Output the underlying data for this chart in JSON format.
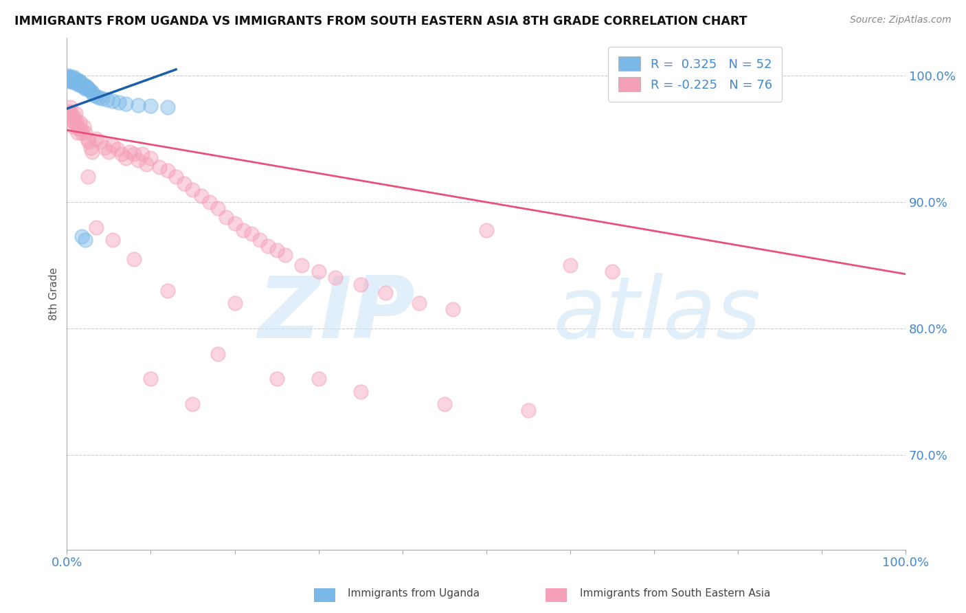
{
  "title": "IMMIGRANTS FROM UGANDA VS IMMIGRANTS FROM SOUTH EASTERN ASIA 8TH GRADE CORRELATION CHART",
  "source": "Source: ZipAtlas.com",
  "ylabel": "8th Grade",
  "legend_blue_label": "R =  0.325   N = 52",
  "legend_pink_label": "R = -0.225   N = 76",
  "blue_color": "#7ab8e8",
  "pink_color": "#f4a0b8",
  "blue_line_color": "#1a5fa8",
  "pink_line_color": "#e8507a",
  "tick_color": "#4488cc",
  "grid_color": "#cccccc",
  "xlim": [
    0.0,
    1.0
  ],
  "ylim": [
    0.625,
    1.03
  ],
  "yticks": [
    0.7,
    0.8,
    0.9,
    1.0
  ],
  "ytick_labels": [
    "70.0%",
    "80.0%",
    "90.0%",
    "100.0%"
  ],
  "blue_x": [
    0.001,
    0.002,
    0.002,
    0.003,
    0.003,
    0.004,
    0.004,
    0.005,
    0.005,
    0.006,
    0.006,
    0.007,
    0.007,
    0.008,
    0.008,
    0.009,
    0.01,
    0.01,
    0.011,
    0.012,
    0.012,
    0.013,
    0.014,
    0.014,
    0.015,
    0.016,
    0.016,
    0.017,
    0.018,
    0.019,
    0.02,
    0.021,
    0.022,
    0.023,
    0.024,
    0.025,
    0.026,
    0.028,
    0.03,
    0.032,
    0.035,
    0.038,
    0.042,
    0.048,
    0.055,
    0.062,
    0.07,
    0.085,
    0.1,
    0.12,
    0.018,
    0.022
  ],
  "blue_y": [
    1.0,
    0.999,
    0.998,
    0.997,
    0.996,
    0.999,
    0.998,
    0.997,
    0.996,
    0.995,
    0.998,
    0.997,
    0.996,
    0.999,
    0.998,
    0.997,
    0.996,
    0.995,
    0.994,
    0.997,
    0.996,
    0.995,
    0.994,
    0.993,
    0.996,
    0.995,
    0.994,
    0.993,
    0.992,
    0.993,
    0.992,
    0.991,
    0.99,
    0.992,
    0.991,
    0.99,
    0.989,
    0.988,
    0.987,
    0.985,
    0.984,
    0.983,
    0.982,
    0.981,
    0.98,
    0.979,
    0.978,
    0.977,
    0.976,
    0.975,
    0.873,
    0.87
  ],
  "pink_x": [
    0.002,
    0.003,
    0.004,
    0.005,
    0.006,
    0.007,
    0.008,
    0.009,
    0.01,
    0.011,
    0.012,
    0.013,
    0.014,
    0.015,
    0.016,
    0.018,
    0.02,
    0.022,
    0.024,
    0.026,
    0.028,
    0.03,
    0.035,
    0.04,
    0.045,
    0.05,
    0.055,
    0.06,
    0.065,
    0.07,
    0.075,
    0.08,
    0.085,
    0.09,
    0.095,
    0.1,
    0.11,
    0.12,
    0.13,
    0.14,
    0.15,
    0.16,
    0.17,
    0.18,
    0.19,
    0.2,
    0.21,
    0.22,
    0.23,
    0.24,
    0.25,
    0.26,
    0.28,
    0.3,
    0.32,
    0.35,
    0.38,
    0.42,
    0.46,
    0.5,
    0.6,
    0.65,
    0.025,
    0.035,
    0.055,
    0.08,
    0.12,
    0.18,
    0.25,
    0.35,
    0.45,
    0.55,
    0.2,
    0.3,
    0.15,
    0.1
  ],
  "pink_y": [
    0.968,
    0.972,
    0.975,
    0.97,
    0.965,
    0.96,
    0.968,
    0.963,
    0.97,
    0.965,
    0.96,
    0.955,
    0.958,
    0.963,
    0.958,
    0.955,
    0.96,
    0.955,
    0.95,
    0.948,
    0.943,
    0.94,
    0.95,
    0.948,
    0.943,
    0.94,
    0.945,
    0.942,
    0.938,
    0.935,
    0.94,
    0.938,
    0.933,
    0.938,
    0.93,
    0.935,
    0.928,
    0.925,
    0.92,
    0.915,
    0.91,
    0.905,
    0.9,
    0.895,
    0.888,
    0.883,
    0.878,
    0.875,
    0.87,
    0.865,
    0.862,
    0.858,
    0.85,
    0.845,
    0.84,
    0.835,
    0.828,
    0.82,
    0.815,
    0.878,
    0.85,
    0.845,
    0.92,
    0.88,
    0.87,
    0.855,
    0.83,
    0.78,
    0.76,
    0.75,
    0.74,
    0.735,
    0.82,
    0.76,
    0.74,
    0.76
  ],
  "blue_line_x0": 0.0,
  "blue_line_x1": 0.13,
  "blue_line_y0": 0.974,
  "blue_line_y1": 1.005,
  "pink_line_x0": 0.0,
  "pink_line_x1": 1.0,
  "pink_line_y0": 0.957,
  "pink_line_y1": 0.843
}
